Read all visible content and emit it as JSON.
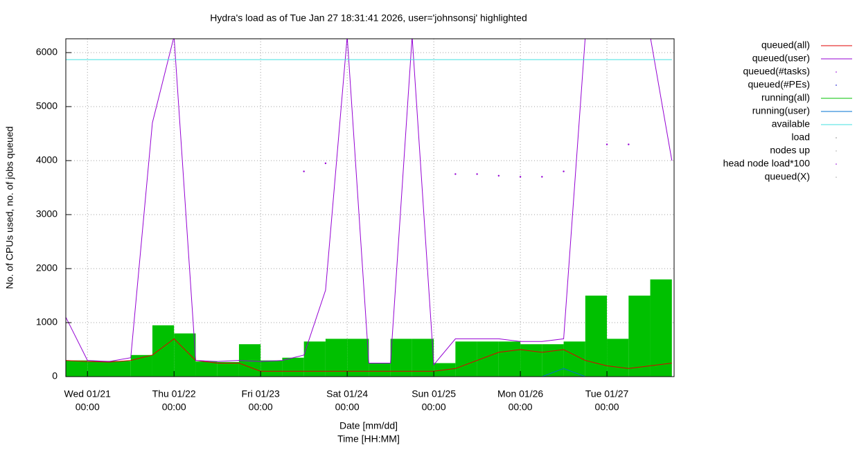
{
  "chart_data": {
    "type": "line",
    "title": "Hydra's load as of Tue Jan 27 18:31:41 2026, user='johnsonsj' highlighted",
    "x_label": [
      "Date [mm/dd]",
      "Time [HH:MM]"
    ],
    "y_label": "No. of CPUs used, no. of jobs queued",
    "x": [
      "01/20 18:00",
      "01/21 00:00",
      "01/21 06:00",
      "01/21 12:00",
      "01/21 18:00",
      "01/22 00:00",
      "01/22 06:00",
      "01/22 12:00",
      "01/22 18:00",
      "01/23 00:00",
      "01/23 06:00",
      "01/23 12:00",
      "01/23 18:00",
      "01/24 00:00",
      "01/24 06:00",
      "01/24 12:00",
      "01/24 18:00",
      "01/25 00:00",
      "01/25 06:00",
      "01/25 12:00",
      "01/25 18:00",
      "01/26 00:00",
      "01/26 06:00",
      "01/26 12:00",
      "01/26 18:00",
      "01/27 00:00",
      "01/27 06:00",
      "01/27 12:00",
      "01/27 18:00"
    ],
    "xlim": [
      "01/20 18:00",
      "01/27 18:37"
    ],
    "xticks": [
      {
        "value": "01/21 00:00",
        "label": [
          "Wed 01/21",
          "00:00"
        ]
      },
      {
        "value": "01/22 00:00",
        "label": [
          "Thu 01/22",
          "00:00"
        ]
      },
      {
        "value": "01/23 00:00",
        "label": [
          "Fri 01/23",
          "00:00"
        ]
      },
      {
        "value": "01/24 00:00",
        "label": [
          "Sat 01/24",
          "00:00"
        ]
      },
      {
        "value": "01/25 00:00",
        "label": [
          "Sun 01/25",
          "00:00"
        ]
      },
      {
        "value": "01/26 00:00",
        "label": [
          "Mon 01/26",
          "00:00"
        ]
      },
      {
        "value": "01/27 00:00",
        "label": [
          "Tue 01/27",
          "00:00"
        ]
      }
    ],
    "ylim": [
      0,
      6256
    ],
    "yticks": [
      0,
      1000,
      2000,
      3000,
      4000,
      5000,
      6000
    ],
    "grid": true,
    "legend": "right",
    "series": [
      {
        "name": "queued(all)",
        "color": "#e00000",
        "style": "line",
        "values": [
          300,
          280,
          270,
          300,
          400,
          700,
          300,
          250,
          250,
          100,
          100,
          100,
          100,
          100,
          100,
          100,
          100,
          100,
          150,
          300,
          450,
          500,
          450,
          500,
          300,
          200,
          150,
          200,
          250
        ]
      },
      {
        "name": "queued(user)",
        "color": "#9400d3",
        "style": "line",
        "values": [
          1100,
          300,
          280,
          350,
          4700,
          6300,
          300,
          280,
          300,
          280,
          300,
          400,
          1600,
          6300,
          250,
          250,
          6300,
          220,
          700,
          700,
          700,
          650,
          650,
          700,
          6300,
          6300,
          6300,
          6300,
          4000
        ]
      },
      {
        "name": "queued(#tasks)",
        "color": "#9400d3",
        "style": "points",
        "values": [
          null,
          null,
          null,
          null,
          null,
          null,
          null,
          null,
          null,
          null,
          null,
          3800,
          3950,
          null,
          null,
          null,
          null,
          null,
          3750,
          3750,
          3720,
          3700,
          3700,
          3800,
          null,
          4300,
          4300,
          null,
          null
        ]
      },
      {
        "name": "queued(#PEs)",
        "color": "#0000cc",
        "style": "points"
      },
      {
        "name": "running(all)",
        "color": "#00c000",
        "style": "area",
        "values": [
          300,
          290,
          290,
          400,
          950,
          800,
          280,
          270,
          600,
          300,
          350,
          650,
          700,
          700,
          250,
          700,
          700,
          250,
          650,
          650,
          650,
          600,
          600,
          650,
          1500,
          700,
          1500,
          1800,
          1800
        ]
      },
      {
        "name": "running(user)",
        "color": "#0070d0",
        "style": "line",
        "values": [
          0,
          0,
          0,
          0,
          0,
          0,
          0,
          0,
          0,
          0,
          0,
          0,
          0,
          0,
          0,
          0,
          0,
          0,
          0,
          0,
          0,
          0,
          0,
          150,
          0,
          0,
          0,
          0,
          0
        ]
      },
      {
        "name": "available",
        "color": "#40e0e0",
        "style": "line",
        "values": [
          5870,
          5870,
          5870,
          5870,
          5870,
          5870,
          5870,
          5870,
          5870,
          5870,
          5870,
          5870,
          5870,
          5870,
          5870,
          5870,
          5870,
          5870,
          5870,
          5870,
          5870,
          5870,
          5870,
          5870,
          5870,
          5870,
          5870,
          5870,
          5870
        ]
      },
      {
        "name": "load",
        "color": "#888888",
        "style": "points"
      },
      {
        "name": "nodes up",
        "color": "#aaaaaa",
        "style": "points"
      },
      {
        "name": "head node load*100",
        "color": "#9400d3",
        "style": "points"
      },
      {
        "name": "queued(X)",
        "color": "#aaaaaa",
        "style": "points"
      }
    ]
  }
}
